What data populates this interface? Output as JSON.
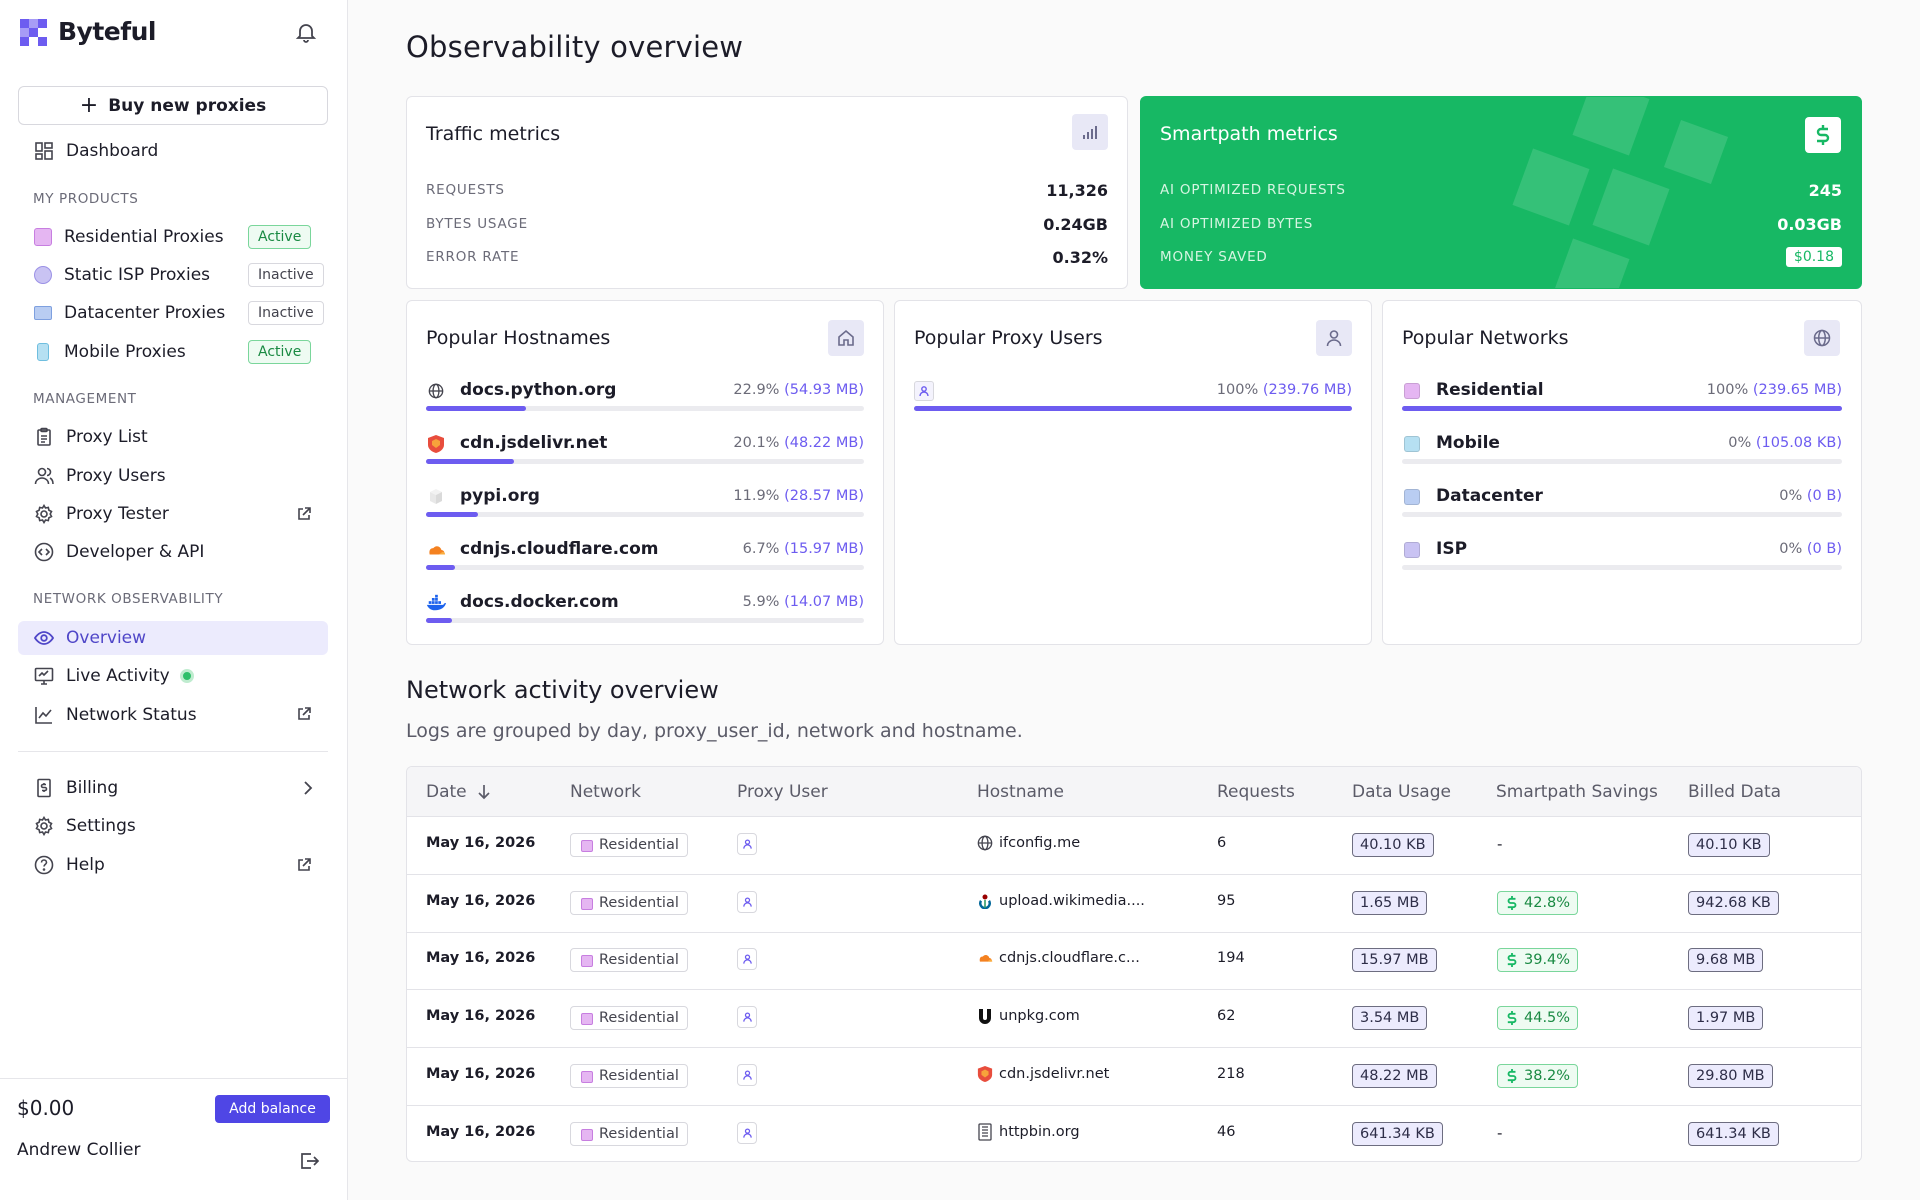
{
  "app": {
    "name": "Byteful"
  },
  "sidebar": {
    "buy_label": "Buy new proxies",
    "dashboard": "Dashboard",
    "section_products": "MY PRODUCTS",
    "products": [
      {
        "label": "Residential Proxies",
        "status": "Active",
        "color": "#e5b6f2"
      },
      {
        "label": "Static ISP Proxies",
        "status": "Inactive",
        "color": "#c9c3f3"
      },
      {
        "label": "Datacenter Proxies",
        "status": "Inactive",
        "color": "#b9cdf2"
      },
      {
        "label": "Mobile Proxies",
        "status": "Active",
        "color": "#b6e0f2"
      }
    ],
    "section_management": "MANAGEMENT",
    "management": [
      "Proxy List",
      "Proxy Users",
      "Proxy Tester",
      "Developer & API"
    ],
    "section_observability": "NETWORK OBSERVABILITY",
    "observability": [
      "Overview",
      "Live Activity",
      "Network Status"
    ],
    "footer_items": [
      "Billing",
      "Settings",
      "Help"
    ],
    "balance": "$0.00",
    "add_balance": "Add balance",
    "user_name": "Andrew Collier"
  },
  "page": {
    "title": "Observability overview"
  },
  "traffic": {
    "title": "Traffic metrics",
    "rows": [
      {
        "label": "REQUESTS",
        "value": "11,326"
      },
      {
        "label": "BYTES USAGE",
        "value": "0.24GB"
      },
      {
        "label": "ERROR RATE",
        "value": "0.32%"
      }
    ]
  },
  "smartpath": {
    "title": "Smartpath metrics",
    "rows": [
      {
        "label": "AI OPTIMIZED REQUESTS",
        "value": "245"
      },
      {
        "label": "AI OPTIMIZED BYTES",
        "value": "0.03GB"
      },
      {
        "label": "MONEY SAVED",
        "value": "$0.18"
      }
    ],
    "accent": "#17b864"
  },
  "hostnames": {
    "title": "Popular Hostnames",
    "items": [
      {
        "name": "docs.python.org",
        "pct": "22.9%",
        "size": "54.93 MB",
        "fraction": 0.229,
        "icon": "globe-icon"
      },
      {
        "name": "cdn.jsdelivr.net",
        "pct": "20.1%",
        "size": "48.22 MB",
        "fraction": 0.201,
        "icon": "jsdelivr-icon"
      },
      {
        "name": "pypi.org",
        "pct": "11.9%",
        "size": "28.57 MB",
        "fraction": 0.119,
        "icon": "pypi-icon"
      },
      {
        "name": "cdnjs.cloudflare.com",
        "pct": "6.7%",
        "size": "15.97 MB",
        "fraction": 0.067,
        "icon": "cloudflare-icon"
      },
      {
        "name": "docs.docker.com",
        "pct": "5.9%",
        "size": "14.07 MB",
        "fraction": 0.059,
        "icon": "docker-icon"
      }
    ]
  },
  "proxy_users": {
    "title": "Popular Proxy Users",
    "items": [
      {
        "pct": "100%",
        "size": "239.76 MB",
        "fraction": 1.0
      }
    ]
  },
  "networks": {
    "title": "Popular Networks",
    "items": [
      {
        "name": "Residential",
        "pct": "100%",
        "size": "239.65 MB",
        "fraction": 1.0,
        "color": "#e5b6f2"
      },
      {
        "name": "Mobile",
        "pct": "0%",
        "size": "105.08 KB",
        "fraction": 0.0,
        "color": "#b6e0f2"
      },
      {
        "name": "Datacenter",
        "pct": "0%",
        "size": "0 B",
        "fraction": 0.0,
        "color": "#b9cdf2"
      },
      {
        "name": "ISP",
        "pct": "0%",
        "size": "0 B",
        "fraction": 0.0,
        "color": "#c9c3f3"
      }
    ]
  },
  "activity": {
    "title": "Network activity overview",
    "subtitle": "Logs are grouped by day, proxy_user_id, network and hostname.",
    "columns": [
      "Date",
      "Network",
      "Proxy User",
      "Hostname",
      "Requests",
      "Data Usage",
      "Smartpath Savings",
      "Billed Data"
    ],
    "rows": [
      {
        "date": "May 16, 2026",
        "network": "Residential",
        "host": "ifconfig.me",
        "icon": "globe-icon",
        "requests": "6",
        "usage": "40.10 KB",
        "savings": "-",
        "billed": "40.10 KB"
      },
      {
        "date": "May 16, 2026",
        "network": "Residential",
        "host": "upload.wikimedia....",
        "icon": "wikimedia-icon",
        "requests": "95",
        "usage": "1.65 MB",
        "savings": "42.8%",
        "billed": "942.68 KB"
      },
      {
        "date": "May 16, 2026",
        "network": "Residential",
        "host": "cdnjs.cloudflare.c...",
        "icon": "cloudflare-icon",
        "requests": "194",
        "usage": "15.97 MB",
        "savings": "39.4%",
        "billed": "9.68 MB"
      },
      {
        "date": "May 16, 2026",
        "network": "Residential",
        "host": "unpkg.com",
        "icon": "unpkg-icon",
        "requests": "62",
        "usage": "3.54 MB",
        "savings": "44.5%",
        "billed": "1.97 MB"
      },
      {
        "date": "May 16, 2026",
        "network": "Residential",
        "host": "cdn.jsdelivr.net",
        "icon": "jsdelivr-icon",
        "requests": "218",
        "usage": "48.22 MB",
        "savings": "38.2%",
        "billed": "29.80 MB"
      },
      {
        "date": "May 16, 2026",
        "network": "Residential",
        "host": "httpbin.org",
        "icon": "httpbin-icon",
        "requests": "46",
        "usage": "641.34 KB",
        "savings": "-",
        "billed": "641.34 KB"
      }
    ]
  }
}
